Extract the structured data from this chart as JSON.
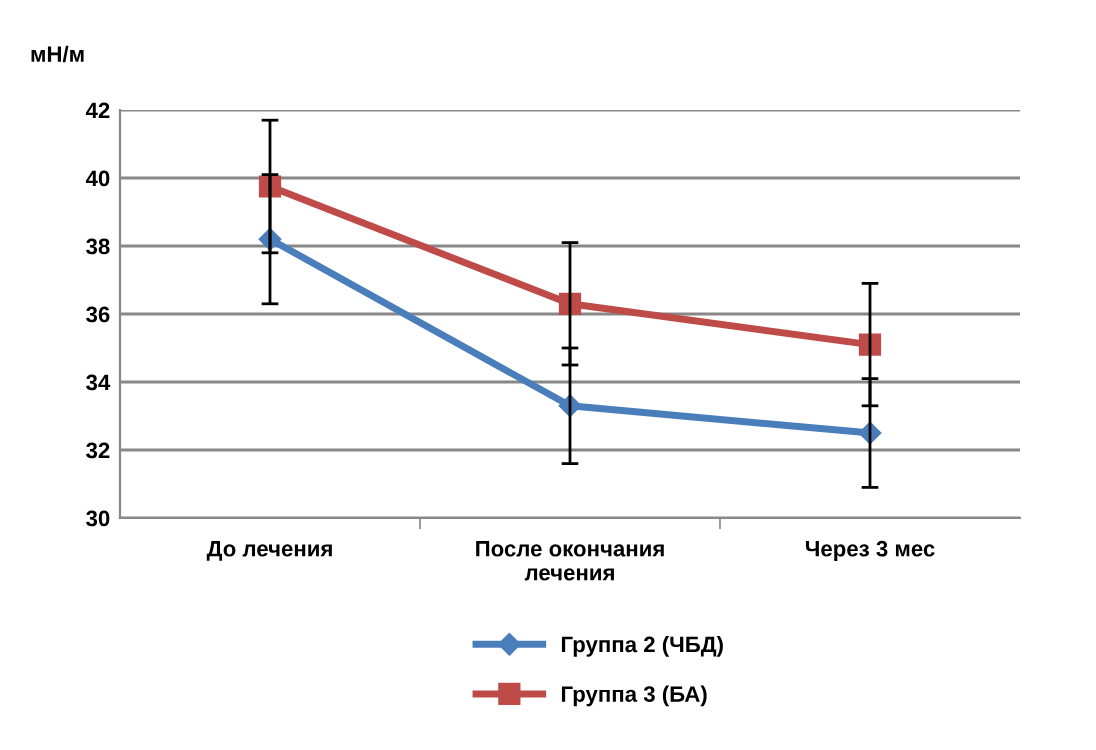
{
  "chart_data": {
    "type": "line",
    "ylabel": "мН/м",
    "categories": [
      "До лечения",
      "После окончания\nлечения",
      "Через 3 мес"
    ],
    "series": [
      {
        "name": "Группа 2 (ЧБД)",
        "color": "#4a7ebb",
        "marker": "diamond",
        "values": [
          38.2,
          33.3,
          32.5
        ],
        "errors": [
          1.9,
          1.7,
          1.6
        ]
      },
      {
        "name": "Группа 3 (БА)",
        "color": "#be4b48",
        "marker": "square",
        "values": [
          39.75,
          36.3,
          35.1
        ],
        "errors": [
          1.95,
          1.8,
          1.8
        ]
      }
    ],
    "ylim": [
      30,
      42
    ],
    "yticks": [
      30,
      32,
      34,
      36,
      38,
      40,
      42
    ],
    "grid": "y",
    "legend": "bottom",
    "line_style": "solid"
  }
}
